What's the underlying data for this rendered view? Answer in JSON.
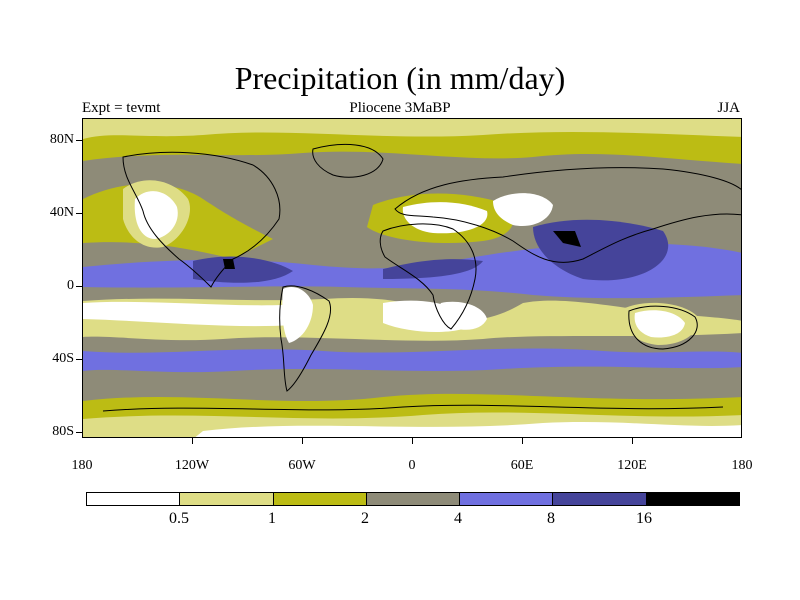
{
  "title": "Precipitation (in mm/day)",
  "subtitle_left": "Expt = tevmt",
  "subtitle_center": "Pliocene   3MaBP",
  "subtitle_right": "JJA",
  "y_ticks": [
    "80N",
    "40N",
    "0",
    "40S",
    "80S"
  ],
  "x_ticks": [
    "180",
    "120W",
    "60W",
    "0",
    "60E",
    "120E",
    "180"
  ],
  "colorbar": {
    "colors": [
      "#ffffff",
      "#dedd86",
      "#bcbc14",
      "#8e8b78",
      "#7070e0",
      "#45449a",
      "#000000"
    ],
    "labels": [
      "0.5",
      "1",
      "2",
      "4",
      "8",
      "16"
    ]
  }
}
